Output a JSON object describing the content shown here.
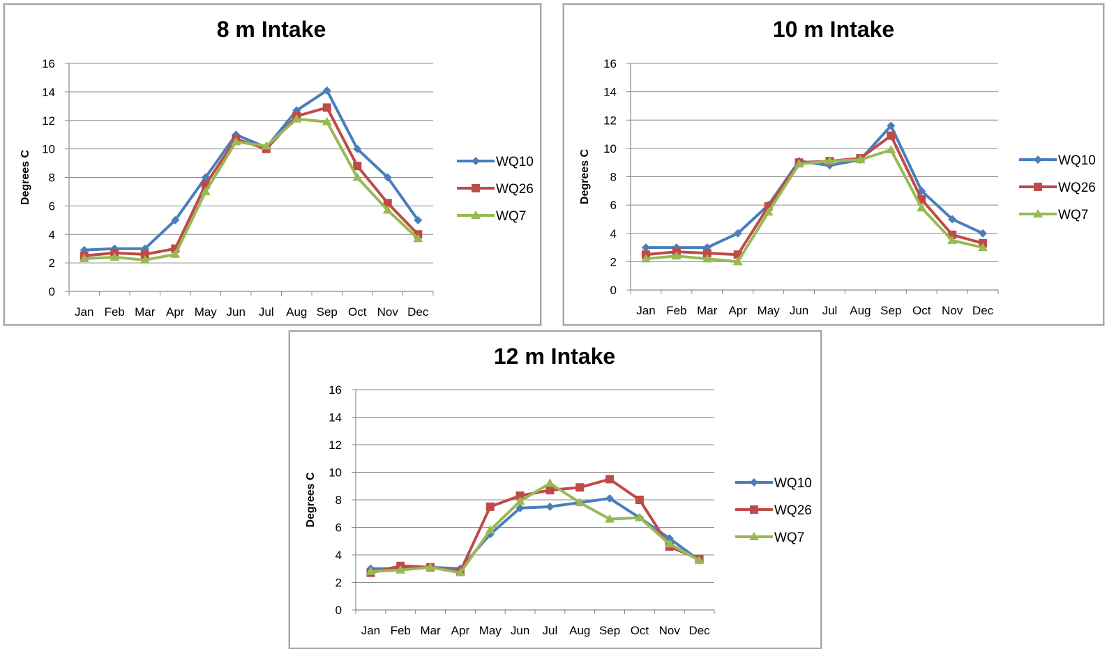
{
  "chart_data": [
    {
      "type": "line",
      "title": "8 m Intake",
      "xlabel": "",
      "ylabel": "Degrees C",
      "ylim": [
        0,
        16
      ],
      "yticks": [
        "0",
        "2",
        "4",
        "6",
        "8",
        "10",
        "12",
        "14",
        "16"
      ],
      "categories": [
        "Jan",
        "Feb",
        "Mar",
        "Apr",
        "May",
        "Jun",
        "Jul",
        "Aug",
        "Sep",
        "Oct",
        "Nov",
        "Dec"
      ],
      "legend": "right",
      "grid": true,
      "series": [
        {
          "name": "WQ10",
          "color": "#4a7ebb",
          "marker": "diamond",
          "values": [
            2.9,
            3.0,
            3.0,
            5.0,
            8.0,
            11.0,
            10.1,
            12.7,
            14.1,
            10.0,
            8.0,
            5.0
          ]
        },
        {
          "name": "WQ26",
          "color": "#be4b48",
          "marker": "square",
          "values": [
            2.5,
            2.7,
            2.6,
            3.0,
            7.5,
            10.7,
            10.0,
            12.3,
            12.9,
            8.8,
            6.2,
            4.0
          ]
        },
        {
          "name": "WQ7",
          "color": "#98b954",
          "marker": "triangle",
          "values": [
            2.3,
            2.4,
            2.2,
            2.6,
            7.0,
            10.5,
            10.2,
            12.1,
            11.9,
            8.0,
            5.7,
            3.7
          ]
        }
      ]
    },
    {
      "type": "line",
      "title": "10 m Intake",
      "xlabel": "",
      "ylabel": "Degrees C",
      "ylim": [
        0,
        16
      ],
      "yticks": [
        "0",
        "2",
        "4",
        "6",
        "8",
        "10",
        "12",
        "14",
        "16"
      ],
      "categories": [
        "Jan",
        "Feb",
        "Mar",
        "Apr",
        "May",
        "Jun",
        "Jul",
        "Aug",
        "Sep",
        "Oct",
        "Nov",
        "Dec"
      ],
      "legend": "right",
      "grid": true,
      "series": [
        {
          "name": "WQ10",
          "color": "#4a7ebb",
          "marker": "diamond",
          "values": [
            3.0,
            3.0,
            3.0,
            4.0,
            6.0,
            9.1,
            8.8,
            9.2,
            11.6,
            7.0,
            5.0,
            4.0
          ]
        },
        {
          "name": "WQ26",
          "color": "#be4b48",
          "marker": "square",
          "values": [
            2.5,
            2.7,
            2.6,
            2.5,
            5.9,
            9.0,
            9.1,
            9.3,
            10.9,
            6.4,
            3.9,
            3.3
          ]
        },
        {
          "name": "WQ7",
          "color": "#98b954",
          "marker": "triangle",
          "values": [
            2.2,
            2.4,
            2.2,
            2.0,
            5.5,
            8.9,
            9.1,
            9.2,
            9.9,
            5.8,
            3.5,
            3.0
          ]
        }
      ]
    },
    {
      "type": "line",
      "title": "12 m Intake",
      "xlabel": "",
      "ylabel": "Degrees C",
      "ylim": [
        0,
        16
      ],
      "yticks": [
        "0",
        "2",
        "4",
        "6",
        "8",
        "10",
        "12",
        "14",
        "16"
      ],
      "categories": [
        "Jan",
        "Feb",
        "Mar",
        "Apr",
        "May",
        "Jun",
        "Jul",
        "Aug",
        "Sep",
        "Oct",
        "Nov",
        "Dec"
      ],
      "legend": "right",
      "grid": true,
      "series": [
        {
          "name": "WQ10",
          "color": "#4a7ebb",
          "marker": "diamond",
          "values": [
            3.0,
            3.0,
            3.1,
            3.0,
            5.5,
            7.4,
            7.5,
            7.8,
            8.1,
            6.7,
            5.2,
            3.6
          ]
        },
        {
          "name": "WQ26",
          "color": "#be4b48",
          "marker": "square",
          "values": [
            2.7,
            3.2,
            3.1,
            2.8,
            7.5,
            8.3,
            8.7,
            8.9,
            9.5,
            8.0,
            4.6,
            3.7
          ]
        },
        {
          "name": "WQ7",
          "color": "#98b954",
          "marker": "triangle",
          "values": [
            2.8,
            2.9,
            3.1,
            2.7,
            5.8,
            7.9,
            9.2,
            7.8,
            6.6,
            6.7,
            4.8,
            3.6
          ]
        }
      ]
    }
  ]
}
